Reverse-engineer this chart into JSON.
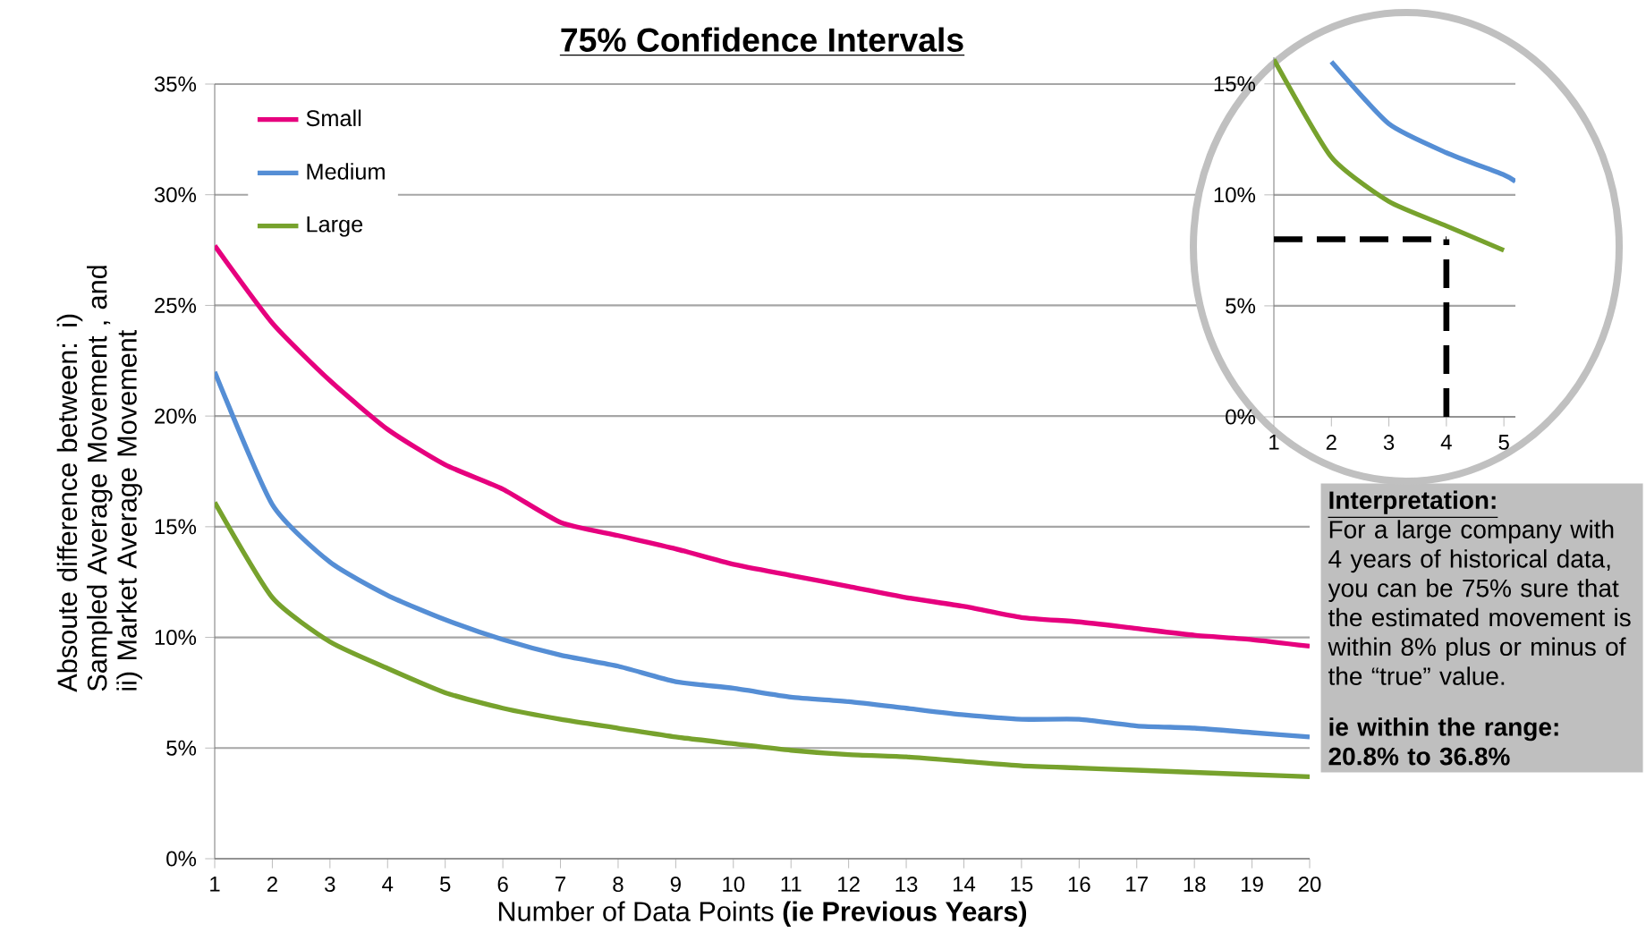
{
  "chart_data": [
    {
      "type": "line",
      "title": "75%  Confidence Intervals",
      "xlabel": "Number of Data Points **(ie Previous Years)**",
      "ylabel": "Absoute difference between: i) Sampled Average Movement , and ii) Market Average Movement",
      "x": [
        1,
        2,
        3,
        4,
        5,
        6,
        7,
        8,
        9,
        10,
        11,
        12,
        13,
        14,
        15,
        16,
        17,
        18,
        19,
        20
      ],
      "series": [
        {
          "name": "Small",
          "color": "#e6007e",
          "values": [
            27.7,
            24.2,
            21.6,
            19.4,
            17.8,
            16.7,
            15.2,
            14.6,
            14.0,
            13.3,
            12.8,
            12.3,
            11.8,
            11.4,
            10.9,
            10.7,
            10.4,
            10.1,
            9.9,
            9.6
          ]
        },
        {
          "name": "Medium",
          "color": "#558ed5",
          "values": [
            22.0,
            16.0,
            13.4,
            11.9,
            10.8,
            9.9,
            9.2,
            8.7,
            8.0,
            7.7,
            7.3,
            7.1,
            6.8,
            6.5,
            6.3,
            6.3,
            6.0,
            5.9,
            5.7,
            5.5
          ]
        },
        {
          "name": "Large",
          "color": "#77a22d",
          "values": [
            16.1,
            11.8,
            9.8,
            8.6,
            7.5,
            6.8,
            6.3,
            5.9,
            5.5,
            5.2,
            4.9,
            4.7,
            4.6,
            4.4,
            4.2,
            4.1,
            4.0,
            3.9,
            3.8,
            3.7
          ]
        }
      ],
      "xlim": [
        1,
        20
      ],
      "xticks": [
        1,
        2,
        3,
        4,
        5,
        6,
        7,
        8,
        9,
        10,
        11,
        12,
        13,
        14,
        15,
        16,
        17,
        18,
        19,
        20
      ],
      "ylim": [
        0,
        35
      ],
      "yticks": [
        {
          "value": 0,
          "label": "0%"
        },
        {
          "value": 5,
          "label": "5%"
        },
        {
          "value": 10,
          "label": "10%"
        },
        {
          "value": 15,
          "label": "15%"
        },
        {
          "value": 20,
          "label": "20%"
        },
        {
          "value": 25,
          "label": "25%"
        },
        {
          "value": 30,
          "label": "30%"
        },
        {
          "value": 35,
          "label": "35%"
        }
      ],
      "grid": "y",
      "legend": "top left",
      "line_style": "solid",
      "annotations": [
        "Interpretation:",
        "For a large company with 4 years of historical data, you can be 75% sure that the estimated movement is within 8% plus or minus of the “true” value.",
        "ie within the range: 20.8% to 36.8%"
      ]
    },
    {
      "type": "line",
      "x": [
        1,
        2,
        3,
        4,
        5
      ],
      "series": [
        {
          "color": "#558ed5",
          "x": [
            2,
            3,
            4,
            5,
            5.2
          ],
          "values": [
            16.0,
            13.2,
            11.9,
            10.9,
            10.6
          ]
        },
        {
          "color": "#77a22d",
          "values": [
            16.1,
            11.7,
            9.7,
            8.6,
            7.5
          ]
        }
      ],
      "xlim": [
        1,
        5.2
      ],
      "xticks": [
        1,
        2,
        3,
        4,
        5
      ],
      "ylim": [
        0,
        16.2
      ],
      "yticks": [
        {
          "value": 0,
          "label": "0%"
        },
        {
          "value": 5,
          "label": "5%"
        },
        {
          "value": 10,
          "label": "10%"
        },
        {
          "value": 15,
          "label": "15%"
        }
      ],
      "grid": "y",
      "line_style": "solid",
      "ref_lines": [
        {
          "axis": "y",
          "value": 8,
          "color": "#000000",
          "line_style": "dashed"
        },
        {
          "axis": "x",
          "value": 4,
          "color": "#000000",
          "line_style": "dashed"
        }
      ]
    }
  ]
}
